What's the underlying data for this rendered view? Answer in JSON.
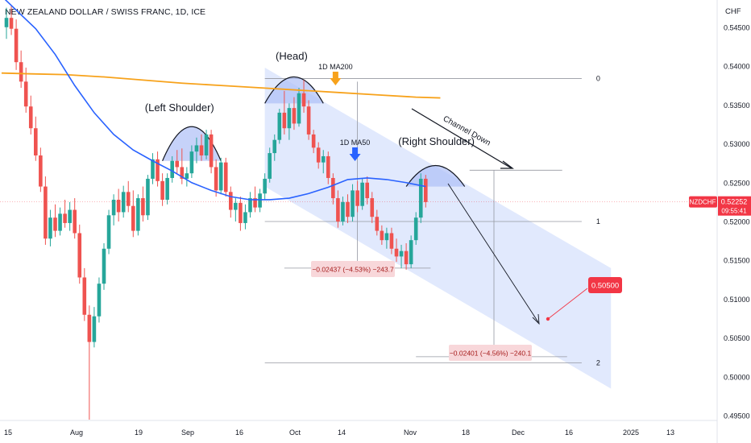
{
  "header": {
    "title": "NEW ZEALAND DOLLAR / SWISS FRANC, 1D, ICE",
    "currency": "CHF"
  },
  "colors": {
    "bull": "#26a69a",
    "bear": "#ef5350",
    "ma50": "#2962ff",
    "ma200": "#f7a21b",
    "channel": "#c9d7fb",
    "shoulder": "#aebff7",
    "measure_bg": "#f8d7da",
    "measure_text": "#a61b1b",
    "target_bg": "#f23645",
    "price_bg": "#f23645"
  },
  "chart_data": {
    "type": "candlestick",
    "symbol": "NZDCHF",
    "timeframe": "1D",
    "ylim": [
      0.4915,
      0.5485
    ],
    "y_ticks": [
      "0.49500",
      "0.50000",
      "0.50500",
      "0.51000",
      "0.51500",
      "0.52000",
      "0.52500",
      "0.53000",
      "0.53500",
      "0.54000",
      "0.54500"
    ],
    "x_ticks": [
      "15",
      "Aug",
      "19",
      "Sep",
      "16",
      "Oct",
      "14",
      "Nov",
      "18",
      "Dec",
      "16",
      "2025",
      "13"
    ],
    "last_price": "0.52252",
    "countdown": "09:55:41",
    "candles": [
      {
        "o": 0.545,
        "h": 0.5475,
        "l": 0.5435,
        "c": 0.5462
      },
      {
        "o": 0.5462,
        "h": 0.5478,
        "l": 0.544,
        "c": 0.5448
      },
      {
        "o": 0.5448,
        "h": 0.546,
        "l": 0.5395,
        "c": 0.5405
      },
      {
        "o": 0.5405,
        "h": 0.542,
        "l": 0.5372,
        "c": 0.538
      },
      {
        "o": 0.538,
        "h": 0.5398,
        "l": 0.534,
        "c": 0.5348
      },
      {
        "o": 0.5348,
        "h": 0.5362,
        "l": 0.5312,
        "c": 0.532
      },
      {
        "o": 0.532,
        "h": 0.5335,
        "l": 0.5278,
        "c": 0.5285
      },
      {
        "o": 0.5285,
        "h": 0.5295,
        "l": 0.5238,
        "c": 0.5245
      },
      {
        "o": 0.5245,
        "h": 0.5258,
        "l": 0.517,
        "c": 0.5178
      },
      {
        "o": 0.5178,
        "h": 0.5215,
        "l": 0.5168,
        "c": 0.5205
      },
      {
        "o": 0.5205,
        "h": 0.5222,
        "l": 0.518,
        "c": 0.5188
      },
      {
        "o": 0.5188,
        "h": 0.5218,
        "l": 0.5182,
        "c": 0.521
      },
      {
        "o": 0.521,
        "h": 0.5228,
        "l": 0.5192,
        "c": 0.5198
      },
      {
        "o": 0.5198,
        "h": 0.5225,
        "l": 0.5188,
        "c": 0.5215
      },
      {
        "o": 0.5215,
        "h": 0.523,
        "l": 0.5178,
        "c": 0.5185
      },
      {
        "o": 0.5185,
        "h": 0.5196,
        "l": 0.512,
        "c": 0.5128
      },
      {
        "o": 0.5128,
        "h": 0.514,
        "l": 0.5072,
        "c": 0.508
      },
      {
        "o": 0.508,
        "h": 0.5092,
        "l": 0.4945,
        "c": 0.5045
      },
      {
        "o": 0.5045,
        "h": 0.509,
        "l": 0.5038,
        "c": 0.5078
      },
      {
        "o": 0.5078,
        "h": 0.5128,
        "l": 0.507,
        "c": 0.512
      },
      {
        "o": 0.512,
        "h": 0.5172,
        "l": 0.5112,
        "c": 0.5165
      },
      {
        "o": 0.5165,
        "h": 0.5215,
        "l": 0.5158,
        "c": 0.5208
      },
      {
        "o": 0.5208,
        "h": 0.5235,
        "l": 0.5195,
        "c": 0.5228
      },
      {
        "o": 0.5228,
        "h": 0.5242,
        "l": 0.52,
        "c": 0.5212
      },
      {
        "o": 0.5212,
        "h": 0.5246,
        "l": 0.5205,
        "c": 0.5238
      },
      {
        "o": 0.5238,
        "h": 0.5252,
        "l": 0.5212,
        "c": 0.522
      },
      {
        "o": 0.522,
        "h": 0.524,
        "l": 0.518,
        "c": 0.5188
      },
      {
        "o": 0.5188,
        "h": 0.5235,
        "l": 0.5182,
        "c": 0.523
      },
      {
        "o": 0.523,
        "h": 0.5245,
        "l": 0.52,
        "c": 0.5208
      },
      {
        "o": 0.5208,
        "h": 0.526,
        "l": 0.5202,
        "c": 0.5255
      },
      {
        "o": 0.5255,
        "h": 0.5288,
        "l": 0.5248,
        "c": 0.528
      },
      {
        "o": 0.528,
        "h": 0.529,
        "l": 0.5245,
        "c": 0.5252
      },
      {
        "o": 0.5252,
        "h": 0.5262,
        "l": 0.522,
        "c": 0.5228
      },
      {
        "o": 0.5228,
        "h": 0.5262,
        "l": 0.5222,
        "c": 0.5256
      },
      {
        "o": 0.5256,
        "h": 0.5284,
        "l": 0.525,
        "c": 0.5278
      },
      {
        "o": 0.5278,
        "h": 0.5292,
        "l": 0.5262,
        "c": 0.527
      },
      {
        "o": 0.527,
        "h": 0.5294,
        "l": 0.5248,
        "c": 0.5255
      },
      {
        "o": 0.5255,
        "h": 0.527,
        "l": 0.5245,
        "c": 0.5262
      },
      {
        "o": 0.5262,
        "h": 0.5298,
        "l": 0.5256,
        "c": 0.529
      },
      {
        "o": 0.529,
        "h": 0.5308,
        "l": 0.5275,
        "c": 0.5298
      },
      {
        "o": 0.5298,
        "h": 0.5312,
        "l": 0.5278,
        "c": 0.5285
      },
      {
        "o": 0.5285,
        "h": 0.5318,
        "l": 0.528,
        "c": 0.5312
      },
      {
        "o": 0.5312,
        "h": 0.5318,
        "l": 0.5262,
        "c": 0.527
      },
      {
        "o": 0.527,
        "h": 0.528,
        "l": 0.5232,
        "c": 0.524
      },
      {
        "o": 0.524,
        "h": 0.5282,
        "l": 0.5235,
        "c": 0.5276
      },
      {
        "o": 0.5276,
        "h": 0.5282,
        "l": 0.5232,
        "c": 0.5238
      },
      {
        "o": 0.5238,
        "h": 0.5245,
        "l": 0.5205,
        "c": 0.5215
      },
      {
        "o": 0.5215,
        "h": 0.523,
        "l": 0.52,
        "c": 0.5224
      },
      {
        "o": 0.5224,
        "h": 0.5232,
        "l": 0.5188,
        "c": 0.5198
      },
      {
        "o": 0.5198,
        "h": 0.5222,
        "l": 0.519,
        "c": 0.5212
      },
      {
        "o": 0.5212,
        "h": 0.5238,
        "l": 0.5205,
        "c": 0.523
      },
      {
        "o": 0.523,
        "h": 0.5245,
        "l": 0.5212,
        "c": 0.5218
      },
      {
        "o": 0.5218,
        "h": 0.5242,
        "l": 0.5212,
        "c": 0.5236
      },
      {
        "o": 0.5236,
        "h": 0.5262,
        "l": 0.5228,
        "c": 0.5255
      },
      {
        "o": 0.5255,
        "h": 0.5295,
        "l": 0.525,
        "c": 0.5288
      },
      {
        "o": 0.5288,
        "h": 0.5312,
        "l": 0.5278,
        "c": 0.5305
      },
      {
        "o": 0.5305,
        "h": 0.5345,
        "l": 0.53,
        "c": 0.534
      },
      {
        "o": 0.534,
        "h": 0.5368,
        "l": 0.5312,
        "c": 0.532
      },
      {
        "o": 0.532,
        "h": 0.5352,
        "l": 0.5305,
        "c": 0.5346
      },
      {
        "o": 0.5346,
        "h": 0.536,
        "l": 0.5318,
        "c": 0.5326
      },
      {
        "o": 0.5326,
        "h": 0.5372,
        "l": 0.5322,
        "c": 0.5365
      },
      {
        "o": 0.5365,
        "h": 0.5382,
        "l": 0.534,
        "c": 0.5348
      },
      {
        "o": 0.5348,
        "h": 0.5356,
        "l": 0.5305,
        "c": 0.5312
      },
      {
        "o": 0.5312,
        "h": 0.5318,
        "l": 0.5288,
        "c": 0.5295
      },
      {
        "o": 0.5295,
        "h": 0.5302,
        "l": 0.5268,
        "c": 0.5276
      },
      {
        "o": 0.5276,
        "h": 0.5292,
        "l": 0.5262,
        "c": 0.5284
      },
      {
        "o": 0.5284,
        "h": 0.529,
        "l": 0.5248,
        "c": 0.5256
      },
      {
        "o": 0.5256,
        "h": 0.5262,
        "l": 0.5222,
        "c": 0.523
      },
      {
        "o": 0.523,
        "h": 0.524,
        "l": 0.5192,
        "c": 0.52
      },
      {
        "o": 0.52,
        "h": 0.5232,
        "l": 0.5195,
        "c": 0.5225
      },
      {
        "o": 0.5225,
        "h": 0.5235,
        "l": 0.5198,
        "c": 0.5206
      },
      {
        "o": 0.5206,
        "h": 0.5248,
        "l": 0.52,
        "c": 0.524
      },
      {
        "o": 0.524,
        "h": 0.5252,
        "l": 0.5212,
        "c": 0.522
      },
      {
        "o": 0.522,
        "h": 0.5256,
        "l": 0.5215,
        "c": 0.525
      },
      {
        "o": 0.525,
        "h": 0.5258,
        "l": 0.5222,
        "c": 0.523
      },
      {
        "o": 0.523,
        "h": 0.5238,
        "l": 0.5198,
        "c": 0.5206
      },
      {
        "o": 0.5206,
        "h": 0.5215,
        "l": 0.5182,
        "c": 0.5188
      },
      {
        "o": 0.5188,
        "h": 0.5195,
        "l": 0.517,
        "c": 0.5176
      },
      {
        "o": 0.5176,
        "h": 0.5192,
        "l": 0.5165,
        "c": 0.5185
      },
      {
        "o": 0.5185,
        "h": 0.5192,
        "l": 0.5158,
        "c": 0.5165
      },
      {
        "o": 0.5165,
        "h": 0.5178,
        "l": 0.5148,
        "c": 0.5155
      },
      {
        "o": 0.5155,
        "h": 0.517,
        "l": 0.514,
        "c": 0.5162
      },
      {
        "o": 0.5162,
        "h": 0.5172,
        "l": 0.5138,
        "c": 0.5145
      },
      {
        "o": 0.5145,
        "h": 0.5182,
        "l": 0.514,
        "c": 0.5176
      },
      {
        "o": 0.5176,
        "h": 0.5212,
        "l": 0.517,
        "c": 0.5205
      },
      {
        "o": 0.5205,
        "h": 0.5262,
        "l": 0.5198,
        "c": 0.5255
      },
      {
        "o": 0.5255,
        "h": 0.526,
        "l": 0.5218,
        "c": 0.5225
      }
    ],
    "ma50": [
      [
        -1,
        0.549
      ],
      [
        2,
        0.5472
      ],
      [
        6,
        0.5448
      ],
      [
        10,
        0.5415
      ],
      [
        14,
        0.5375
      ],
      [
        18,
        0.534
      ],
      [
        22,
        0.5312
      ],
      [
        26,
        0.5292
      ],
      [
        30,
        0.5278
      ],
      [
        34,
        0.5265
      ],
      [
        38,
        0.525
      ],
      [
        42,
        0.524
      ],
      [
        46,
        0.5232
      ],
      [
        50,
        0.5228
      ],
      [
        54,
        0.5228
      ],
      [
        58,
        0.523
      ],
      [
        62,
        0.5236
      ],
      [
        66,
        0.5244
      ],
      [
        70,
        0.5254
      ],
      [
        74,
        0.5256
      ],
      [
        78,
        0.5254
      ],
      [
        82,
        0.525
      ],
      [
        86,
        0.5245
      ]
    ],
    "ma200": [
      [
        -1,
        0.5391
      ],
      [
        5,
        0.539
      ],
      [
        12,
        0.5389
      ],
      [
        20,
        0.5386
      ],
      [
        28,
        0.5382
      ],
      [
        36,
        0.5378
      ],
      [
        44,
        0.5375
      ],
      [
        52,
        0.5372
      ],
      [
        60,
        0.5369
      ],
      [
        68,
        0.5366
      ],
      [
        76,
        0.5363
      ],
      [
        84,
        0.536
      ],
      [
        89,
        0.5359
      ]
    ],
    "channel": {
      "top_left": [
        53,
        0.5398
      ],
      "top_right": [
        124,
        0.514
      ],
      "bottom_right": [
        124,
        0.4985
      ],
      "bottom_left": [
        53,
        0.5245
      ]
    },
    "fib_levels": [
      {
        "label": "0",
        "x1": 53,
        "x2": 118,
        "y": 0.5384
      },
      {
        "label": "1",
        "x1": 53,
        "x2": 118,
        "y": 0.52
      },
      {
        "label": "2",
        "x1": 53,
        "x2": 118,
        "y": 0.5018
      }
    ],
    "measure_lines": [
      {
        "x1": 57,
        "x2": 87,
        "y": 0.514
      },
      {
        "x1": 84,
        "x2": 115,
        "y": 0.5026
      },
      {
        "x1": 95,
        "x2": 114,
        "y": 0.5266
      }
    ],
    "measure_arrows": [
      {
        "x": 72,
        "y1": 0.538,
        "y2": 0.5138
      },
      {
        "x": 100,
        "y1": 0.5266,
        "y2": 0.5024
      }
    ],
    "shoulders": [
      {
        "name": "left",
        "x1": 32,
        "x2": 44,
        "base": 0.5278,
        "peak": 0.5322
      },
      {
        "name": "head",
        "x1": 53,
        "x2": 65,
        "base": 0.5352,
        "peak": 0.5386
      },
      {
        "name": "right",
        "x1": 82,
        "x2": 94,
        "base": 0.5245,
        "peak": 0.5272
      }
    ],
    "labels": {
      "head": "(Head)",
      "left_shoulder": "(Left Shoulder)",
      "right_shoulder": "(Right Shoulder)",
      "ma200": "1D MA200",
      "ma50": "1D MA50",
      "channel": "Channel Down"
    },
    "measures": [
      {
        "text": "−0.02437 (−4.53%) −243.7",
        "x": 72,
        "y": 0.5128
      },
      {
        "text": "−0.02401 (−4.56%) −240.1",
        "x": 100,
        "y": 0.5003
      }
    ],
    "target": {
      "value": "0.50500",
      "x": 112,
      "y": 0.505
    }
  }
}
